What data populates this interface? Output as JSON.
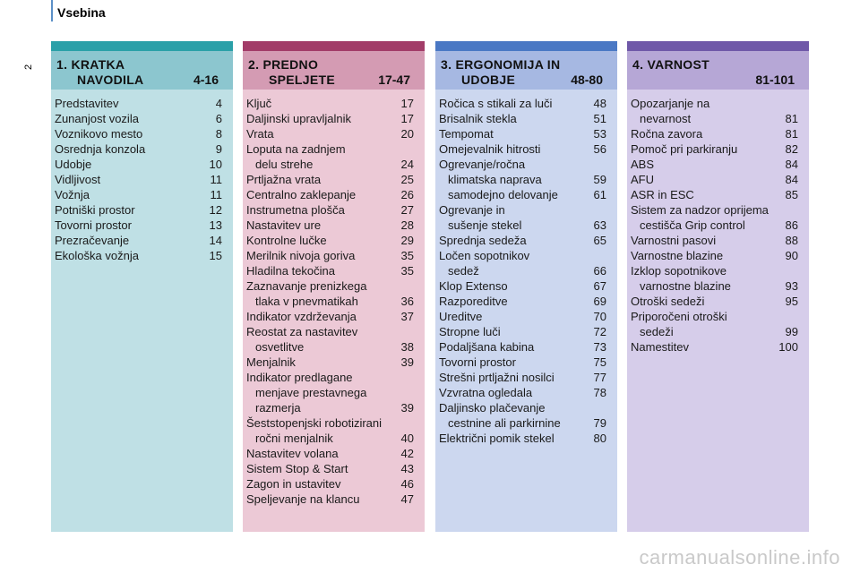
{
  "header": {
    "title": "Vsebina",
    "page_number": "2"
  },
  "watermark": "carmanualsonline.info",
  "sections": [
    {
      "line1": "1. KRATKA",
      "line2": "NAVODILA",
      "range": "4-16",
      "items": [
        {
          "t": "Predstavitev",
          "t2": "",
          "p": "4"
        },
        {
          "t": "Zunanjost vozila",
          "t2": "",
          "p": "6"
        },
        {
          "t": "Voznikovo mesto",
          "t2": "",
          "p": "8"
        },
        {
          "t": "Osrednja konzola",
          "t2": "",
          "p": "9"
        },
        {
          "t": "Udobje",
          "t2": "",
          "p": "10"
        },
        {
          "t": "Vidljivost",
          "t2": "",
          "p": "11"
        },
        {
          "t": "Vožnja",
          "t2": "",
          "p": "11"
        },
        {
          "t": "Potniški prostor",
          "t2": "",
          "p": "12"
        },
        {
          "t": "Tovorni prostor",
          "t2": "",
          "p": "13"
        },
        {
          "t": "Prezračevanje",
          "t2": "",
          "p": "14"
        },
        {
          "t": "Ekološka vožnja",
          "t2": "",
          "p": "15"
        }
      ]
    },
    {
      "line1": "2. PREDNO",
      "line2": "SPELJETE",
      "range": "17-47",
      "items": [
        {
          "t": "Ključ",
          "t2": "",
          "p": "17"
        },
        {
          "t": "Daljinski upravljalnik",
          "t2": "",
          "p": "17"
        },
        {
          "t": "Vrata",
          "t2": "",
          "p": "20"
        },
        {
          "t": "Loputa na zadnjem",
          "t2": "delu strehe",
          "p": "24"
        },
        {
          "t": "Prtljažna vrata",
          "t2": "",
          "p": "25"
        },
        {
          "t": "Centralno zaklepanje",
          "t2": "",
          "p": "26"
        },
        {
          "t": "Instrumetna plošča",
          "t2": "",
          "p": "27"
        },
        {
          "t": "Nastavitev ure",
          "t2": "",
          "p": "28"
        },
        {
          "t": "Kontrolne lučke",
          "t2": "",
          "p": "29"
        },
        {
          "t": "Merilnik nivoja goriva",
          "t2": "",
          "p": "35"
        },
        {
          "t": "Hladilna tekočina",
          "t2": "",
          "p": "35"
        },
        {
          "t": "Zaznavanje prenizkega",
          "t2": "tlaka v pnevmatikah",
          "p": "36"
        },
        {
          "t": "Indikator vzdrževanja",
          "t2": "",
          "p": "37"
        },
        {
          "t": "Reostat za nastavitev",
          "t2": "osvetlitve",
          "p": "38"
        },
        {
          "t": "Menjalnik",
          "t2": "",
          "p": "39"
        },
        {
          "t": "Indikator predlagane",
          "t2": "menjave prestavnega",
          "p": ""
        },
        {
          "t": "",
          "t2": "razmerja",
          "p": "39"
        },
        {
          "t": "Šeststopenjski robotizirani",
          "t2": "ročni menjalnik",
          "p": "40"
        },
        {
          "t": "Nastavitev volana",
          "t2": "",
          "p": "42"
        },
        {
          "t": "Sistem Stop & Start",
          "t2": "",
          "p": "43"
        },
        {
          "t": "Zagon in ustavitev",
          "t2": "",
          "p": "46"
        },
        {
          "t": "Speljevanje na klancu",
          "t2": "",
          "p": "47"
        }
      ]
    },
    {
      "line1": "3. ERGONOMIJA IN",
      "line2": "UDOBJE",
      "range": "48-80",
      "items": [
        {
          "t": "Ročica s stikali za luči",
          "t2": "",
          "p": "48"
        },
        {
          "t": "Brisalnik stekla",
          "t2": "",
          "p": "51"
        },
        {
          "t": "Tempomat",
          "t2": "",
          "p": "53"
        },
        {
          "t": "Omejevalnik hitrosti",
          "t2": "",
          "p": "56"
        },
        {
          "t": "Ogrevanje/ročna",
          "t2": "klimatska naprava",
          "p": "59"
        },
        {
          "t": "",
          "t2": "samodejno delovanje",
          "p": "61"
        },
        {
          "t": "Ogrevanje in",
          "t2": "sušenje stekel",
          "p": "63"
        },
        {
          "t": "Sprednja sedeža",
          "t2": "",
          "p": "65"
        },
        {
          "t": "Ločen sopotnikov",
          "t2": "sedež",
          "p": "66"
        },
        {
          "t": "Klop Extenso",
          "t2": "",
          "p": "67"
        },
        {
          "t": "Razporeditve",
          "t2": "",
          "p": "69"
        },
        {
          "t": "Ureditve",
          "t2": "",
          "p": "70"
        },
        {
          "t": "Stropne luči",
          "t2": "",
          "p": "72"
        },
        {
          "t": "Podaljšana kabina",
          "t2": "",
          "p": "73"
        },
        {
          "t": "Tovorni prostor",
          "t2": "",
          "p": "75"
        },
        {
          "t": "Strešni prtljažni nosilci",
          "t2": "",
          "p": "77"
        },
        {
          "t": "Vzvratna ogledala",
          "t2": "",
          "p": "78"
        },
        {
          "t": "Daljinsko plačevanje",
          "t2": "cestnine ali parkirnine",
          "p": "79"
        },
        {
          "t": "Električni pomik stekel",
          "t2": "",
          "p": "80"
        }
      ]
    },
    {
      "line1": "4. VARNOST",
      "line2": "",
      "range": "81-101",
      "items": [
        {
          "t": "Opozarjanje na",
          "t2": "nevarnost",
          "p": "81"
        },
        {
          "t": "Ročna zavora",
          "t2": "",
          "p": "81"
        },
        {
          "t": "Pomoč pri parkiranju",
          "t2": "",
          "p": "82"
        },
        {
          "t": "ABS",
          "t2": "",
          "p": "84"
        },
        {
          "t": "AFU",
          "t2": "",
          "p": "84"
        },
        {
          "t": "ASR in ESC",
          "t2": "",
          "p": "85"
        },
        {
          "t": "Sistem za nadzor oprijema",
          "t2": "cestišča Grip control",
          "p": "86"
        },
        {
          "t": "Varnostni pasovi",
          "t2": "",
          "p": "88"
        },
        {
          "t": "Varnostne blazine",
          "t2": "",
          "p": "90"
        },
        {
          "t": "Izklop sopotnikove",
          "t2": "varnostne blazine",
          "p": "93"
        },
        {
          "t": "Otroški sedeži",
          "t2": "",
          "p": "95"
        },
        {
          "t": "Priporočeni otroški",
          "t2": "sedeži",
          "p": "99"
        },
        {
          "t": "Namestitev",
          "t2": "",
          "p": "100"
        }
      ]
    }
  ]
}
